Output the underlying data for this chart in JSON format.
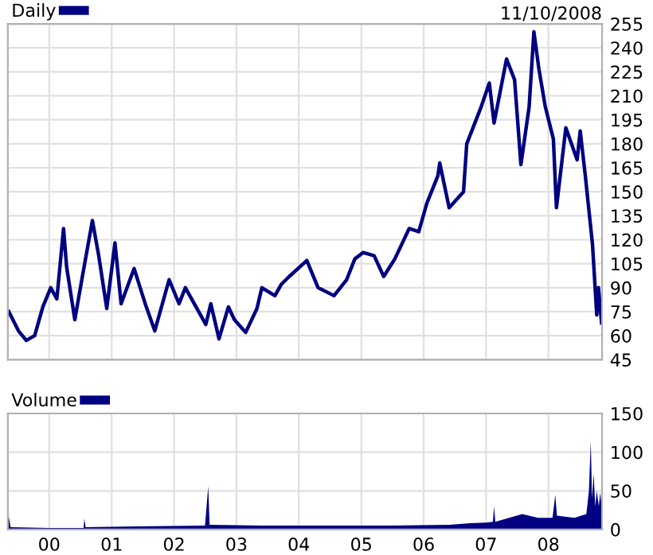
{
  "chart_data": [
    {
      "type": "line",
      "title": "11/10/2008",
      "legend": "top left",
      "grid": true,
      "tick_labels": "y",
      "line_style": "solid",
      "xlim": [
        "1999-05-04",
        "2008-11-10"
      ],
      "xticks": [
        {
          "value": "2000-01-01",
          "label": null
        },
        {
          "value": "2001-01-01",
          "label": null
        },
        {
          "value": "2002-01-01",
          "label": null
        },
        {
          "value": "2003-01-01",
          "label": null
        },
        {
          "value": "2004-01-01",
          "label": null
        },
        {
          "value": "2005-01-01",
          "label": null
        },
        {
          "value": "2006-01-01",
          "label": null
        },
        {
          "value": "2007-01-01",
          "label": null
        },
        {
          "value": "2008-01-01",
          "label": null
        }
      ],
      "ylim": [
        45,
        255
      ],
      "yticks": [
        45,
        60,
        75,
        90,
        105,
        120,
        135,
        150,
        165,
        180,
        195,
        210,
        225,
        240,
        255
      ],
      "series": [
        {
          "name": "Daily",
          "color": "#000080",
          "x": [
            "1999-05-10",
            "1999-07-05",
            "1999-08-20",
            "1999-10-08",
            "1999-11-25",
            "2000-01-10",
            "2000-02-15",
            "2000-03-25",
            "2000-04-12",
            "2000-05-30",
            "2000-07-15",
            "2000-09-10",
            "2000-10-17",
            "2000-12-03",
            "2001-01-20",
            "2001-02-25",
            "2001-05-12",
            "2001-07-16",
            "2001-09-10",
            "2001-12-03",
            "2002-01-30",
            "2002-03-08",
            "2002-07-06",
            "2002-08-04",
            "2002-09-21",
            "2002-11-15",
            "2002-12-20",
            "2003-02-24",
            "2003-05-01",
            "2003-05-30",
            "2003-08-14",
            "2003-09-20",
            "2003-11-06",
            "2004-02-17",
            "2004-04-23",
            "2004-07-25",
            "2004-10-07",
            "2004-11-24",
            "2005-01-12",
            "2005-03-17",
            "2005-05-12",
            "2005-07-16",
            "2005-10-08",
            "2005-12-03",
            "2006-01-20",
            "2006-03-25",
            "2006-04-05",
            "2006-05-30",
            "2006-08-22",
            "2006-09-10",
            "2006-12-03",
            "2007-01-20",
            "2007-02-17",
            "2007-05-01",
            "2007-06-17",
            "2007-07-24",
            "2007-09-10",
            "2007-10-08",
            "2007-11-06",
            "2007-12-14",
            "2008-01-30",
            "2008-02-17",
            "2008-04-12",
            "2008-06-17",
            "2008-07-05",
            "2008-08-04",
            "2008-09-15",
            "2008-10-10",
            "2008-10-20",
            "2008-11-07"
          ],
          "values": [
            75,
            63,
            57,
            60,
            78,
            90,
            83,
            127,
            103,
            70,
            98,
            132,
            110,
            77,
            118,
            80,
            102,
            80,
            63,
            95,
            80,
            90,
            67,
            80,
            58,
            78,
            70,
            62,
            77,
            90,
            85,
            92,
            97,
            107,
            90,
            85,
            95,
            108,
            112,
            110,
            97,
            108,
            127,
            125,
            143,
            160,
            168,
            140,
            150,
            180,
            203,
            218,
            193,
            233,
            220,
            167,
            203,
            250,
            227,
            203,
            183,
            140,
            190,
            170,
            188,
            160,
            117,
            73,
            90,
            68
          ]
        }
      ]
    },
    {
      "type": "area",
      "legend": "top left",
      "grid": true,
      "xlim": [
        "1999-05-04",
        "2008-11-10"
      ],
      "xticks": [
        {
          "value": "2000-01-01",
          "label": "00"
        },
        {
          "value": "2001-01-01",
          "label": "01"
        },
        {
          "value": "2002-01-01",
          "label": "02"
        },
        {
          "value": "2003-01-01",
          "label": "03"
        },
        {
          "value": "2004-01-01",
          "label": "04"
        },
        {
          "value": "2005-01-01",
          "label": "05"
        },
        {
          "value": "2006-01-01",
          "label": "06"
        },
        {
          "value": "2007-01-01",
          "label": "07"
        },
        {
          "value": "2008-01-01",
          "label": "08"
        }
      ],
      "ylim": [
        0,
        150
      ],
      "yticks": [
        0,
        50,
        100,
        150
      ],
      "series": [
        {
          "name": "Volume",
          "color": "#000080",
          "x": [
            "1999-05-05",
            "1999-05-20",
            "2000-01-01",
            "2000-07-20",
            "2000-07-25",
            "2000-08-01",
            "2001-06-01",
            "2002-07-01",
            "2002-07-20",
            "2002-07-28",
            "2003-06-01",
            "2004-06-01",
            "2005-06-01",
            "2006-06-01",
            "2006-10-01",
            "2007-01-01",
            "2007-02-10",
            "2007-02-17",
            "2007-02-24",
            "2007-08-01",
            "2007-11-01",
            "2008-01-25",
            "2008-02-10",
            "2008-02-20",
            "2008-06-01",
            "2008-08-10",
            "2008-08-25",
            "2008-09-05",
            "2008-09-12",
            "2008-09-22",
            "2008-10-01",
            "2008-10-10",
            "2008-10-22",
            "2008-10-30",
            "2008-11-10"
          ],
          "values": [
            22,
            3,
            2,
            2,
            14,
            3,
            4,
            5,
            56,
            6,
            5,
            5,
            5,
            6,
            8,
            9,
            10,
            30,
            10,
            20,
            15,
            15,
            45,
            18,
            15,
            20,
            50,
            115,
            40,
            72,
            30,
            50,
            30,
            48,
            25
          ]
        }
      ]
    }
  ]
}
